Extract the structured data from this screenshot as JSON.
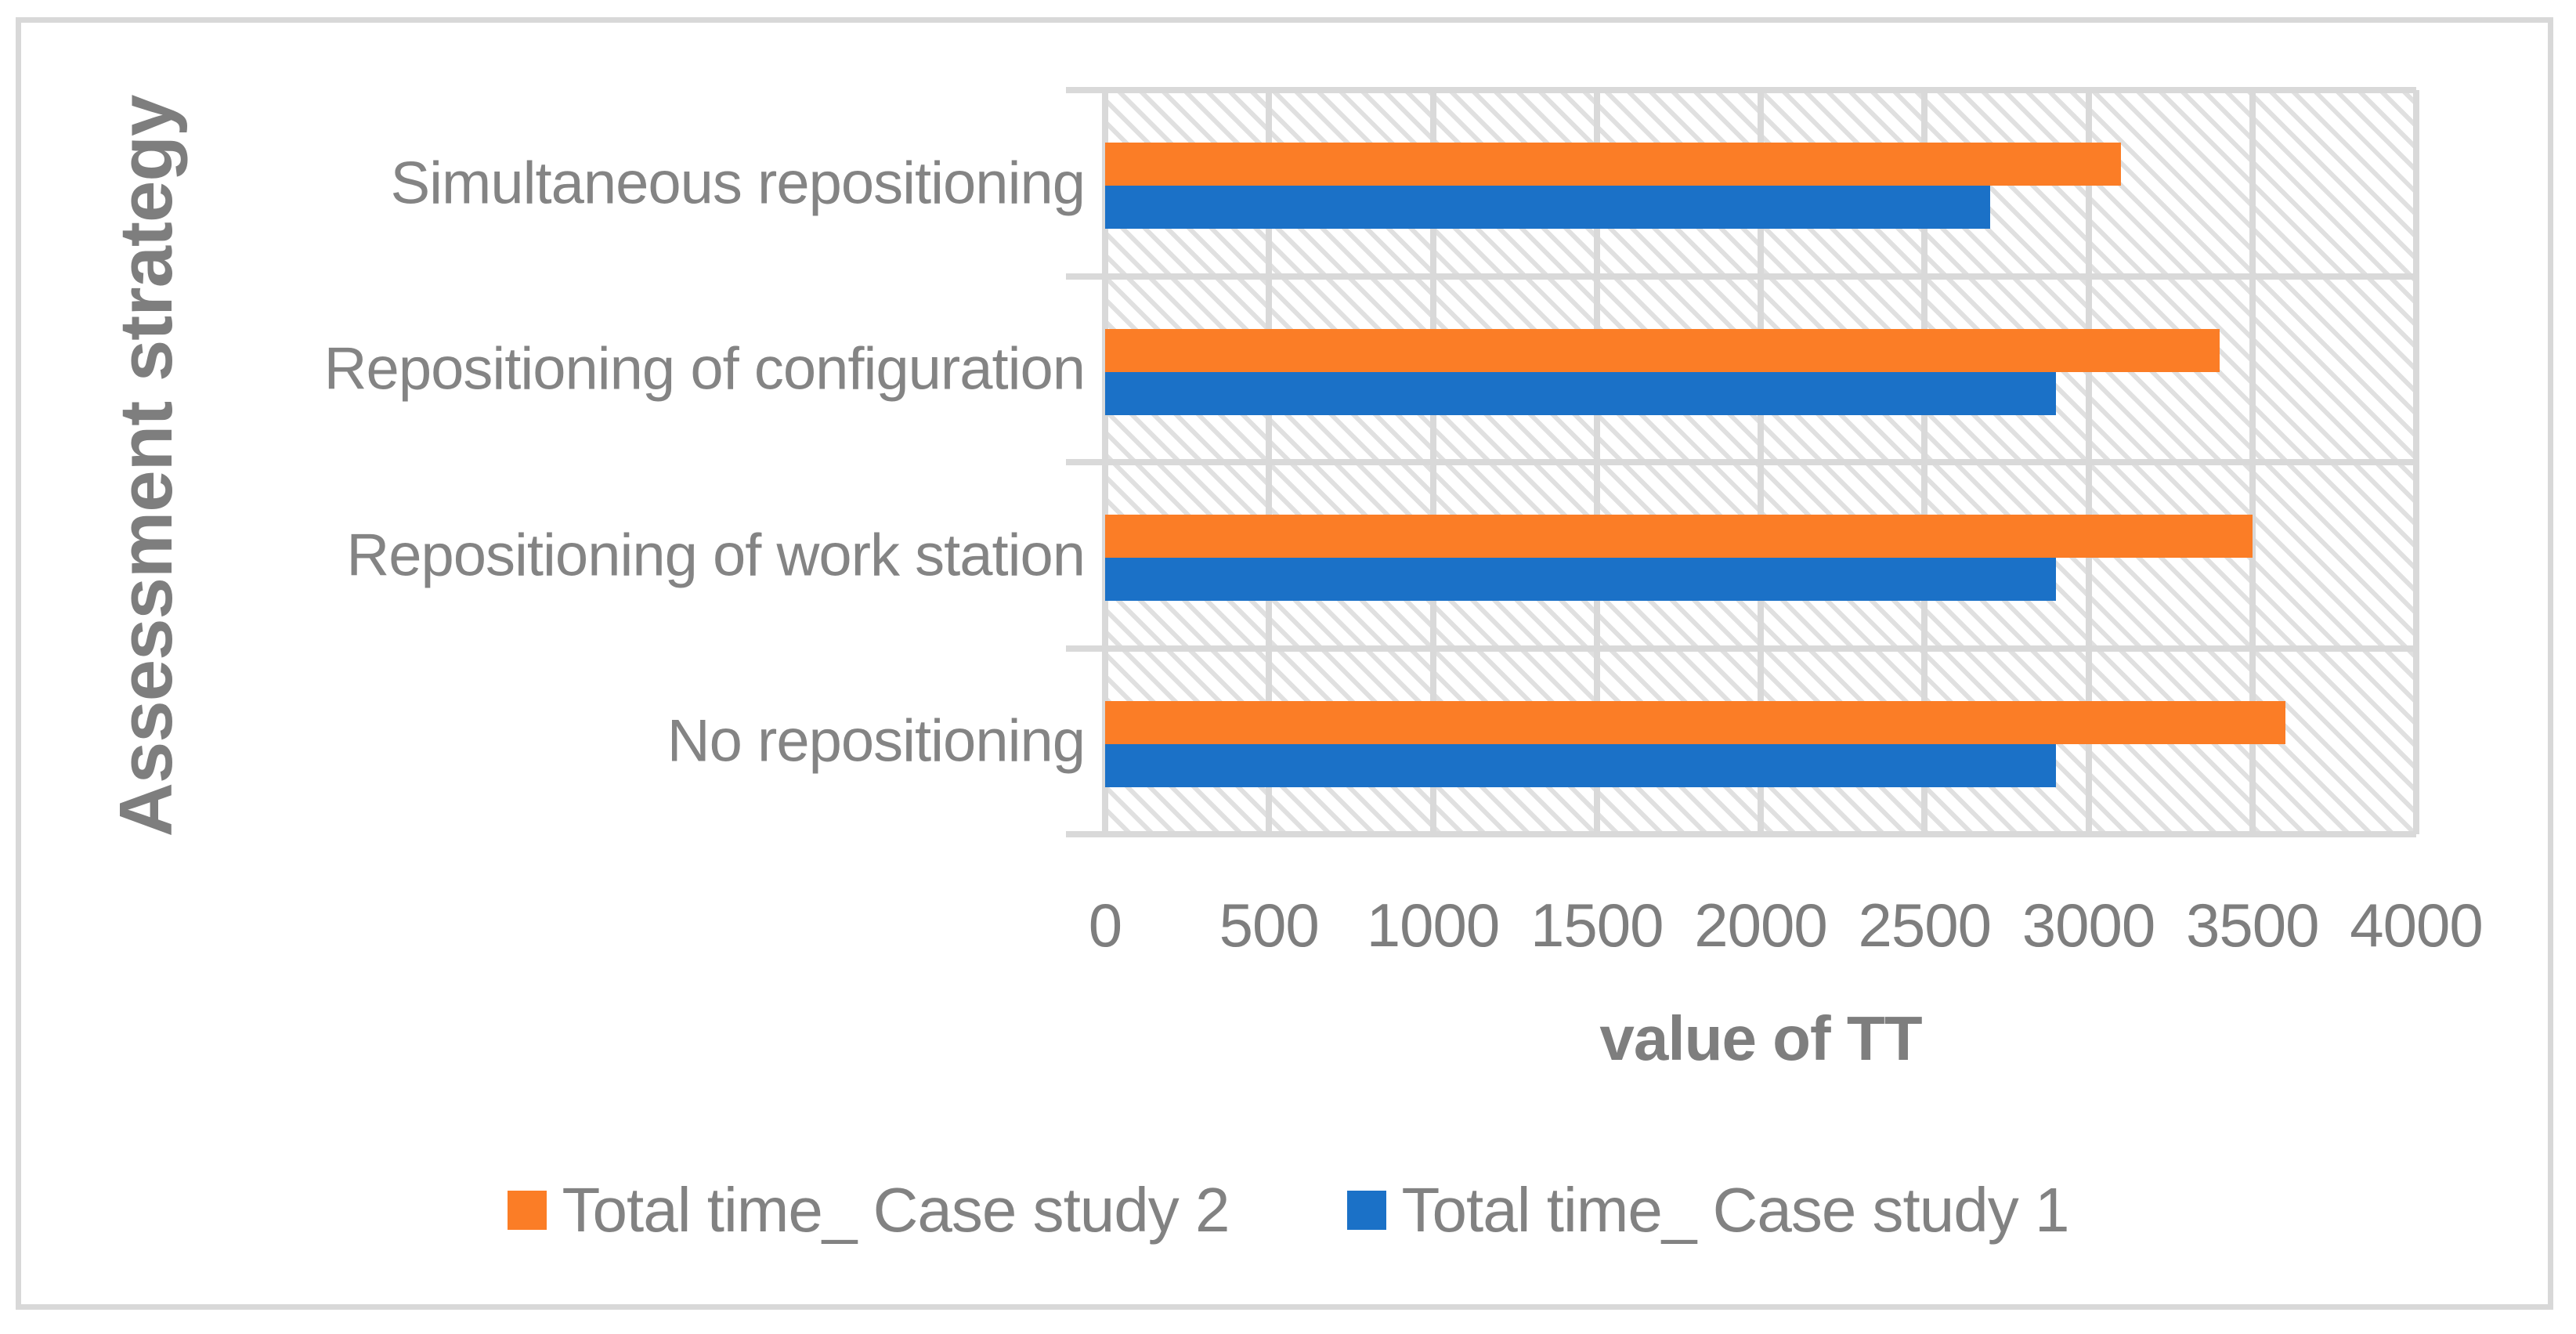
{
  "figure": {
    "background": "#FFFFFF",
    "border_color": "#D8D8D8"
  },
  "chart_data": {
    "type": "bar",
    "orientation": "horizontal",
    "title": "",
    "xlabel": "value of TT",
    "ylabel": "Assessment strategy",
    "categories": [
      "Simultaneous repositioning",
      "Repositioning of configuration",
      "Repositioning of work station",
      "No repositioning"
    ],
    "series": [
      {
        "name": "Total time_ Case study 2",
        "color": "#FB7D26",
        "values": [
          3100,
          3400,
          3500,
          3600
        ]
      },
      {
        "name": "Total time_ Case study 1",
        "color": "#1B71C7",
        "values": [
          2700,
          2900,
          2900,
          2900
        ]
      }
    ],
    "xlim": [
      0,
      4000
    ],
    "xticks": [
      0,
      500,
      1000,
      1500,
      2000,
      2500,
      3000,
      3500,
      4000
    ],
    "grid": true,
    "legend_position": "bottom",
    "plot_background": "diagonal-hatch",
    "colors": {
      "gridline": "#D9D9D9",
      "hatch_line": "#E0E0E0",
      "tick_text": "#7E7E7E",
      "category_text": "#848484",
      "axis_title_text": "#7E7E7E",
      "legend_text": "#828282"
    }
  }
}
